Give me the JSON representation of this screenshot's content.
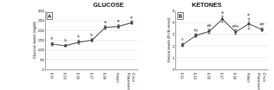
{
  "chart_data": [
    {
      "type": "line",
      "panel": "A",
      "title": "GLUCOSE",
      "y_label": "Glucose levels (mg/dl)",
      "categories": [
        "E11",
        "E13",
        "E15",
        "E17",
        "E19",
        "Hatch",
        "Chick Placement"
      ],
      "values": [
        130,
        122,
        140,
        150,
        215,
        220,
        240
      ],
      "errors": [
        8,
        6,
        10,
        8,
        10,
        9,
        8
      ],
      "letters": [
        "b",
        "b",
        "b",
        "b",
        "a",
        "a",
        "a"
      ],
      "color": "#404040",
      "marker": "circle",
      "line_style": "solid",
      "ylim": [
        0,
        300
      ],
      "yticks": [
        0,
        50,
        100,
        150,
        200,
        250,
        300
      ],
      "grid": true
    },
    {
      "type": "line",
      "panel": "B",
      "title": "KETONES",
      "y_label": "Ketone levels (B-Hb mmol)",
      "categories": [
        "E11",
        "E13",
        "E15",
        "E17",
        "E19",
        "Hatch",
        "Chick Placement"
      ],
      "values": [
        2.1,
        2.9,
        3.25,
        4.3,
        3.2,
        3.9,
        3.4
      ],
      "errors": [
        0.15,
        0.15,
        0.2,
        0.25,
        0.2,
        0.45,
        0.15
      ],
      "letters": [
        "c",
        "bc",
        "ab",
        "a",
        "abc",
        "a",
        "ab"
      ],
      "color": "#404040",
      "marker": "circle",
      "line_style": "solid",
      "ylim": [
        0,
        5
      ],
      "yticks": [
        0,
        1,
        2,
        3,
        4,
        5
      ],
      "grid": true
    }
  ]
}
